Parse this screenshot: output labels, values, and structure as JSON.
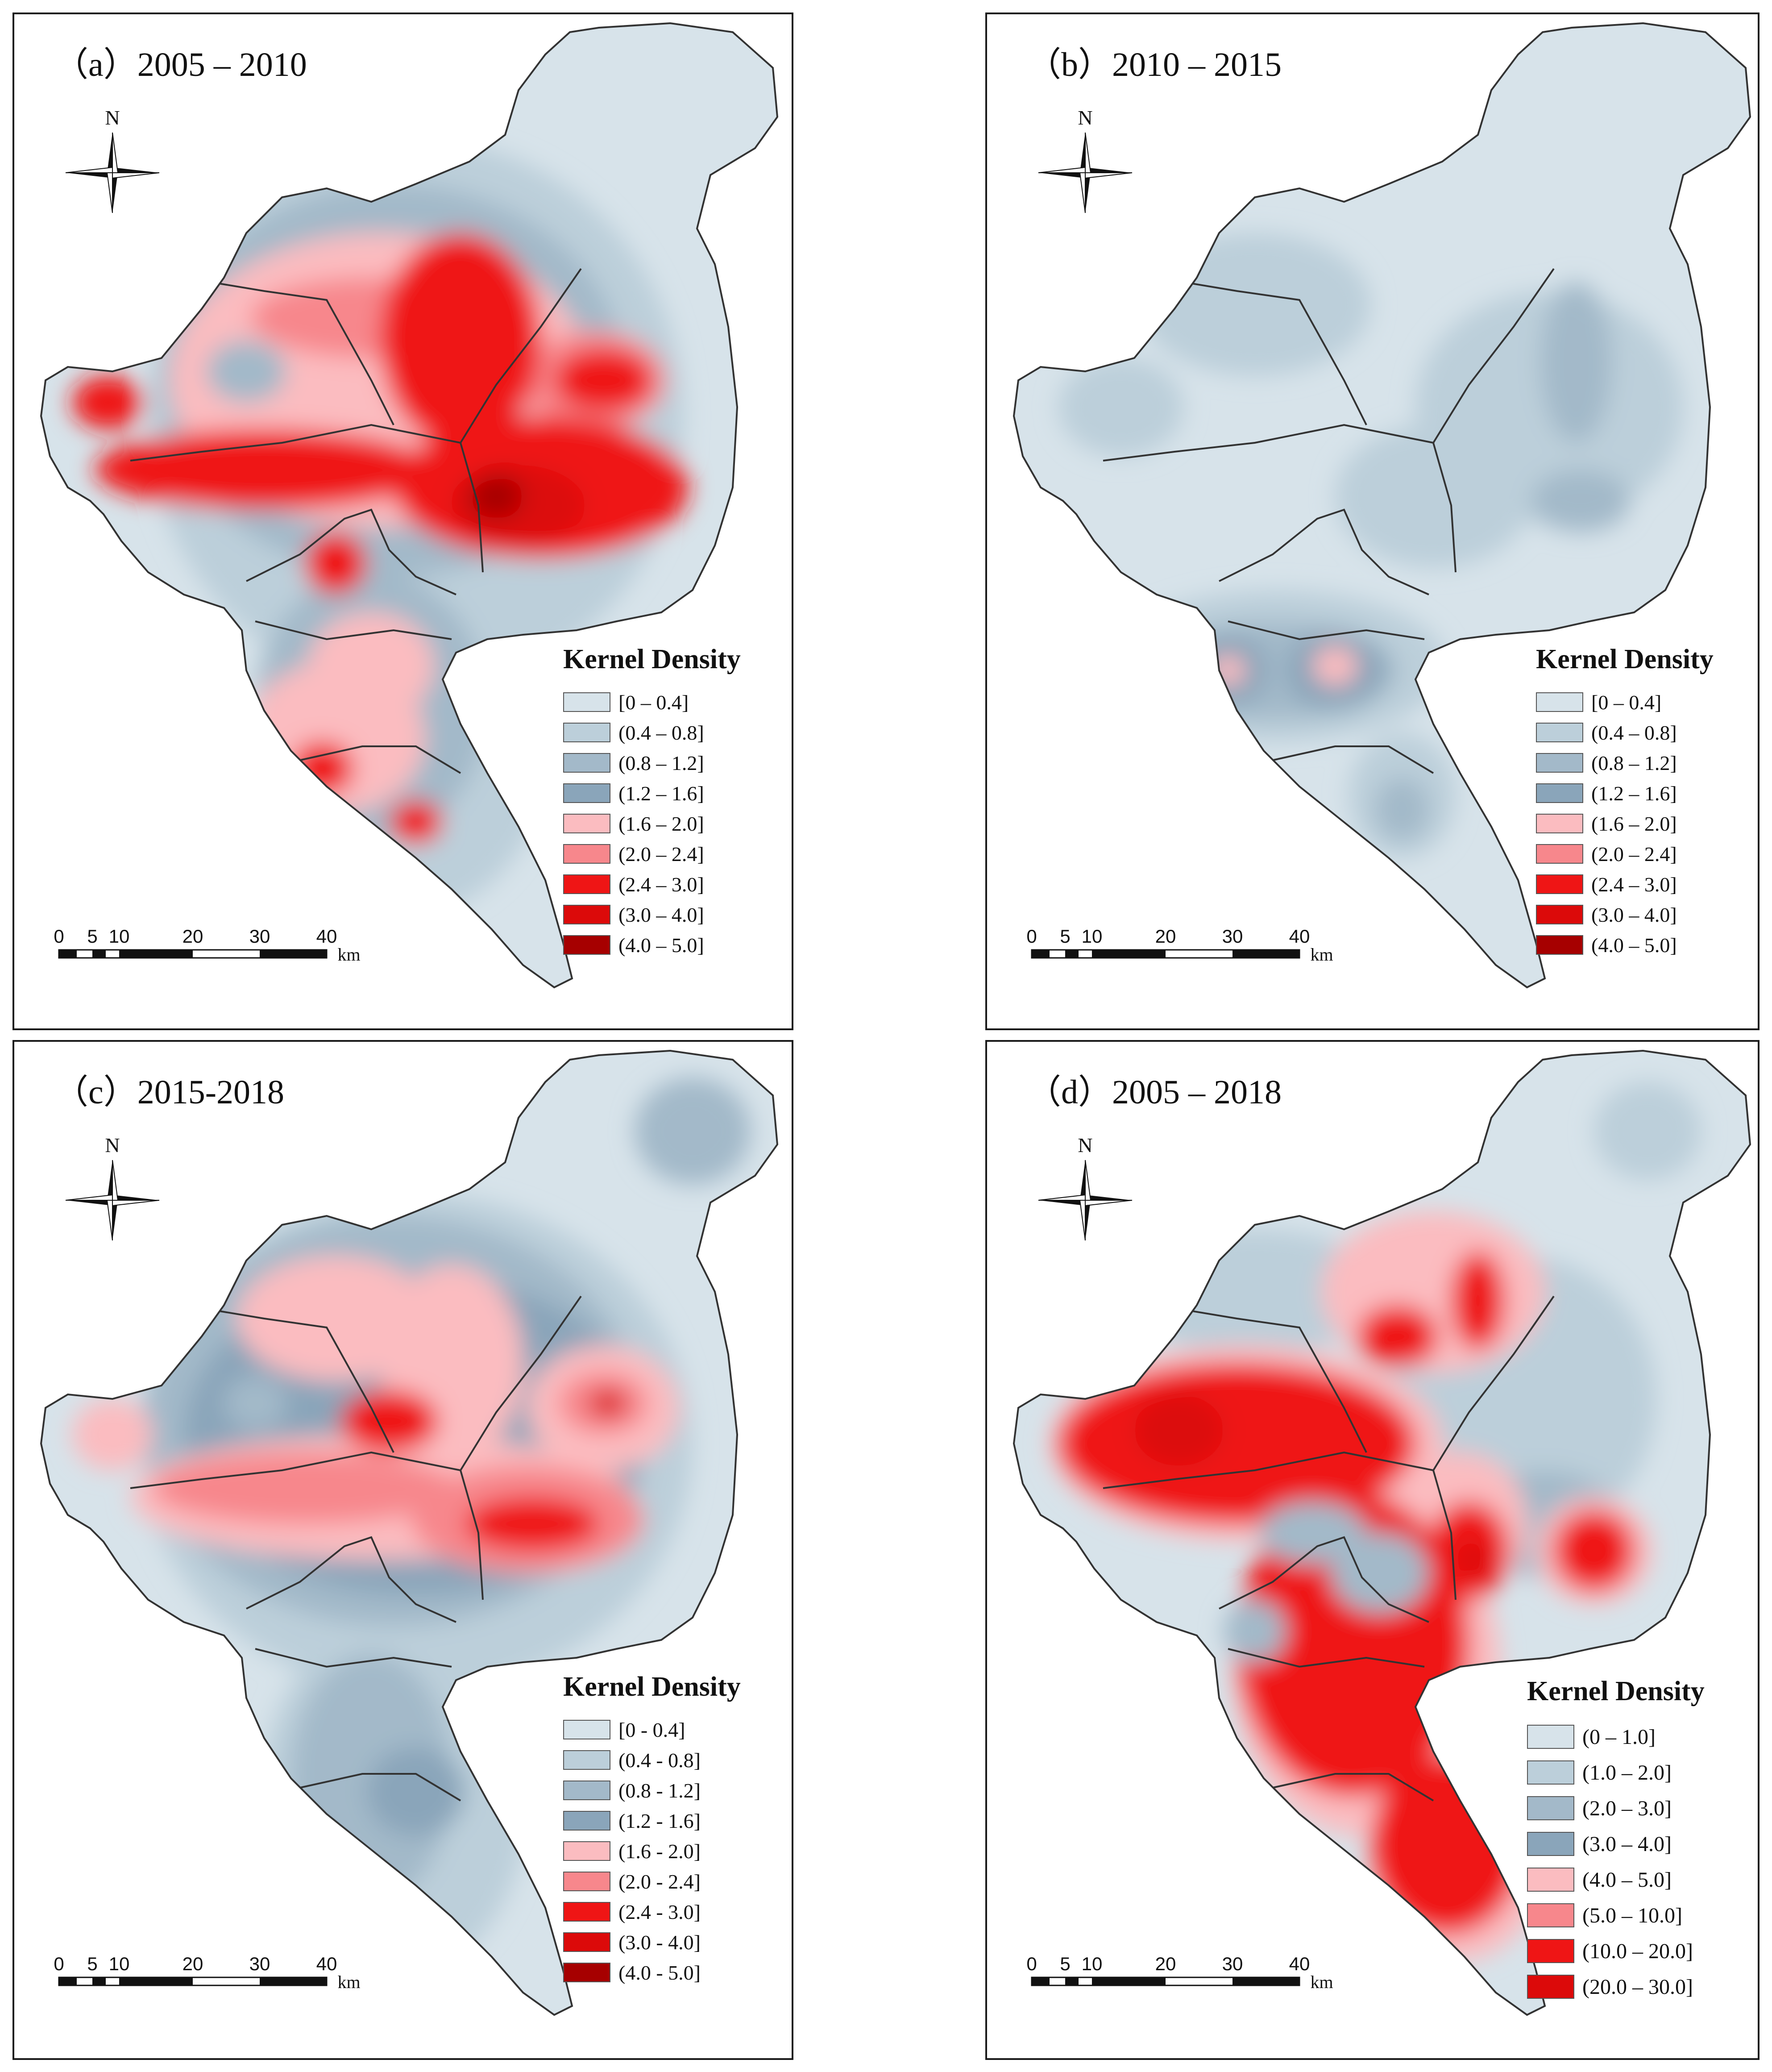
{
  "colors": {
    "c0": "#d7e3ea",
    "c1": "#bccfda",
    "c2": "#a3b9c9",
    "c3": "#8aa5ba",
    "c4": "#fbbcc0",
    "c5": "#f7878c",
    "c6": "#ef1515",
    "c7": "#dc0a0a",
    "c8": "#a60000",
    "boundary": "#333333",
    "frame": "#1a1a1a"
  },
  "legend_title": "Kernel Density",
  "north_label": "N",
  "scale": {
    "ticks": [
      "0",
      "5",
      "10",
      "20",
      "30",
      "40"
    ],
    "unit": "km"
  },
  "panels": [
    {
      "id": "a",
      "title": "（a）2005 – 2010",
      "legend": [
        {
          "label": "[0 – 0.4]",
          "color": "#d7e3ea"
        },
        {
          "label": "(0.4 – 0.8]",
          "color": "#bccfda"
        },
        {
          "label": "(0.8 – 1.2]",
          "color": "#a3b9c9"
        },
        {
          "label": "(1.2 – 1.6]",
          "color": "#8aa5ba"
        },
        {
          "label": "(1.6 – 2.0]",
          "color": "#fbbcc0"
        },
        {
          "label": "(2.0 – 2.4]",
          "color": "#f7878c"
        },
        {
          "label": "(2.4 – 3.0]",
          "color": "#ef1515"
        },
        {
          "label": "(3.0 – 4.0]",
          "color": "#dc0a0a"
        },
        {
          "label": "(4.0 – 5.0]",
          "color": "#a60000"
        }
      ]
    },
    {
      "id": "b",
      "title": "（b）2010 – 2015",
      "legend": [
        {
          "label": "[0 – 0.4]",
          "color": "#d7e3ea"
        },
        {
          "label": "(0.4 – 0.8]",
          "color": "#bccfda"
        },
        {
          "label": "(0.8 – 1.2]",
          "color": "#a3b9c9"
        },
        {
          "label": "(1.2 – 1.6]",
          "color": "#8aa5ba"
        },
        {
          "label": "(1.6 – 2.0]",
          "color": "#fbbcc0"
        },
        {
          "label": "(2.0 – 2.4]",
          "color": "#f7878c"
        },
        {
          "label": "(2.4 – 3.0]",
          "color": "#ef1515"
        },
        {
          "label": "(3.0 – 4.0]",
          "color": "#dc0a0a"
        },
        {
          "label": "(4.0 – 5.0]",
          "color": "#a60000"
        }
      ]
    },
    {
      "id": "c",
      "title": "（c）2015-2018",
      "legend": [
        {
          "label": "[0 - 0.4]",
          "color": "#d7e3ea"
        },
        {
          "label": "(0.4 - 0.8]",
          "color": "#bccfda"
        },
        {
          "label": "(0.8 - 1.2]",
          "color": "#a3b9c9"
        },
        {
          "label": "(1.2 - 1.6]",
          "color": "#8aa5ba"
        },
        {
          "label": "(1.6 - 2.0]",
          "color": "#fbbcc0"
        },
        {
          "label": "(2.0 - 2.4]",
          "color": "#f7878c"
        },
        {
          "label": "(2.4 - 3.0]",
          "color": "#ef1515"
        },
        {
          "label": "(3.0 - 4.0]",
          "color": "#dc0a0a"
        },
        {
          "label": "(4.0 - 5.0]",
          "color": "#a60000"
        }
      ]
    },
    {
      "id": "d",
      "title": "（d）2005 – 2018",
      "legend": [
        {
          "label": "(0 – 1.0]",
          "color": "#d7e3ea"
        },
        {
          "label": "(1.0 – 2.0]",
          "color": "#bccfda"
        },
        {
          "label": "(2.0 – 3.0]",
          "color": "#a3b9c9"
        },
        {
          "label": "(3.0 – 4.0]",
          "color": "#8aa5ba"
        },
        {
          "label": "(4.0 – 5.0]",
          "color": "#fbbcc0"
        },
        {
          "label": "(5.0 – 10.0]",
          "color": "#f7878c"
        },
        {
          "label": "(10.0 – 20.0]",
          "color": "#ef1515"
        },
        {
          "label": "(20.0 – 30.0]",
          "color": "#dc0a0a"
        }
      ]
    }
  ]
}
